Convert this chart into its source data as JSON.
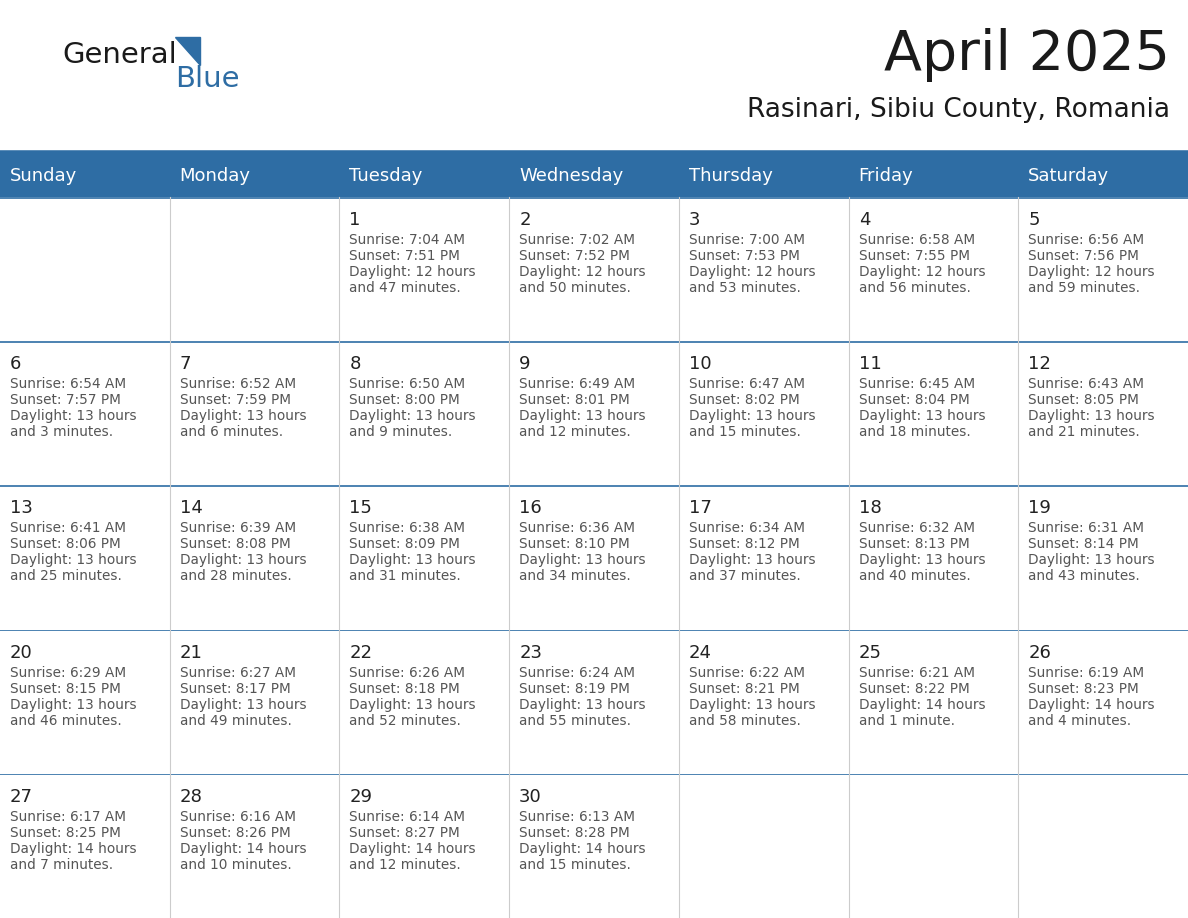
{
  "title": "April 2025",
  "subtitle": "Rasinari, Sibiu County, Romania",
  "header_bg": "#2E6DA4",
  "header_text_color": "#FFFFFF",
  "cell_bg_even": "#EFEFEF",
  "cell_bg_odd": "#FFFFFF",
  "border_color": "#2E6DA4",
  "day_headers": [
    "Sunday",
    "Monday",
    "Tuesday",
    "Wednesday",
    "Thursday",
    "Friday",
    "Saturday"
  ],
  "days_data": [
    {
      "day": 1,
      "col": 2,
      "row": 0,
      "sunrise": "7:04 AM",
      "sunset": "7:51 PM",
      "daylight": "12 hours",
      "daylight2": "and 47 minutes."
    },
    {
      "day": 2,
      "col": 3,
      "row": 0,
      "sunrise": "7:02 AM",
      "sunset": "7:52 PM",
      "daylight": "12 hours",
      "daylight2": "and 50 minutes."
    },
    {
      "day": 3,
      "col": 4,
      "row": 0,
      "sunrise": "7:00 AM",
      "sunset": "7:53 PM",
      "daylight": "12 hours",
      "daylight2": "and 53 minutes."
    },
    {
      "day": 4,
      "col": 5,
      "row": 0,
      "sunrise": "6:58 AM",
      "sunset": "7:55 PM",
      "daylight": "12 hours",
      "daylight2": "and 56 minutes."
    },
    {
      "day": 5,
      "col": 6,
      "row": 0,
      "sunrise": "6:56 AM",
      "sunset": "7:56 PM",
      "daylight": "12 hours",
      "daylight2": "and 59 minutes."
    },
    {
      "day": 6,
      "col": 0,
      "row": 1,
      "sunrise": "6:54 AM",
      "sunset": "7:57 PM",
      "daylight": "13 hours",
      "daylight2": "and 3 minutes."
    },
    {
      "day": 7,
      "col": 1,
      "row": 1,
      "sunrise": "6:52 AM",
      "sunset": "7:59 PM",
      "daylight": "13 hours",
      "daylight2": "and 6 minutes."
    },
    {
      "day": 8,
      "col": 2,
      "row": 1,
      "sunrise": "6:50 AM",
      "sunset": "8:00 PM",
      "daylight": "13 hours",
      "daylight2": "and 9 minutes."
    },
    {
      "day": 9,
      "col": 3,
      "row": 1,
      "sunrise": "6:49 AM",
      "sunset": "8:01 PM",
      "daylight": "13 hours",
      "daylight2": "and 12 minutes."
    },
    {
      "day": 10,
      "col": 4,
      "row": 1,
      "sunrise": "6:47 AM",
      "sunset": "8:02 PM",
      "daylight": "13 hours",
      "daylight2": "and 15 minutes."
    },
    {
      "day": 11,
      "col": 5,
      "row": 1,
      "sunrise": "6:45 AM",
      "sunset": "8:04 PM",
      "daylight": "13 hours",
      "daylight2": "and 18 minutes."
    },
    {
      "day": 12,
      "col": 6,
      "row": 1,
      "sunrise": "6:43 AM",
      "sunset": "8:05 PM",
      "daylight": "13 hours",
      "daylight2": "and 21 minutes."
    },
    {
      "day": 13,
      "col": 0,
      "row": 2,
      "sunrise": "6:41 AM",
      "sunset": "8:06 PM",
      "daylight": "13 hours",
      "daylight2": "and 25 minutes."
    },
    {
      "day": 14,
      "col": 1,
      "row": 2,
      "sunrise": "6:39 AM",
      "sunset": "8:08 PM",
      "daylight": "13 hours",
      "daylight2": "and 28 minutes."
    },
    {
      "day": 15,
      "col": 2,
      "row": 2,
      "sunrise": "6:38 AM",
      "sunset": "8:09 PM",
      "daylight": "13 hours",
      "daylight2": "and 31 minutes."
    },
    {
      "day": 16,
      "col": 3,
      "row": 2,
      "sunrise": "6:36 AM",
      "sunset": "8:10 PM",
      "daylight": "13 hours",
      "daylight2": "and 34 minutes."
    },
    {
      "day": 17,
      "col": 4,
      "row": 2,
      "sunrise": "6:34 AM",
      "sunset": "8:12 PM",
      "daylight": "13 hours",
      "daylight2": "and 37 minutes."
    },
    {
      "day": 18,
      "col": 5,
      "row": 2,
      "sunrise": "6:32 AM",
      "sunset": "8:13 PM",
      "daylight": "13 hours",
      "daylight2": "and 40 minutes."
    },
    {
      "day": 19,
      "col": 6,
      "row": 2,
      "sunrise": "6:31 AM",
      "sunset": "8:14 PM",
      "daylight": "13 hours",
      "daylight2": "and 43 minutes."
    },
    {
      "day": 20,
      "col": 0,
      "row": 3,
      "sunrise": "6:29 AM",
      "sunset": "8:15 PM",
      "daylight": "13 hours",
      "daylight2": "and 46 minutes."
    },
    {
      "day": 21,
      "col": 1,
      "row": 3,
      "sunrise": "6:27 AM",
      "sunset": "8:17 PM",
      "daylight": "13 hours",
      "daylight2": "and 49 minutes."
    },
    {
      "day": 22,
      "col": 2,
      "row": 3,
      "sunrise": "6:26 AM",
      "sunset": "8:18 PM",
      "daylight": "13 hours",
      "daylight2": "and 52 minutes."
    },
    {
      "day": 23,
      "col": 3,
      "row": 3,
      "sunrise": "6:24 AM",
      "sunset": "8:19 PM",
      "daylight": "13 hours",
      "daylight2": "and 55 minutes."
    },
    {
      "day": 24,
      "col": 4,
      "row": 3,
      "sunrise": "6:22 AM",
      "sunset": "8:21 PM",
      "daylight": "13 hours",
      "daylight2": "and 58 minutes."
    },
    {
      "day": 25,
      "col": 5,
      "row": 3,
      "sunrise": "6:21 AM",
      "sunset": "8:22 PM",
      "daylight": "14 hours",
      "daylight2": "and 1 minute."
    },
    {
      "day": 26,
      "col": 6,
      "row": 3,
      "sunrise": "6:19 AM",
      "sunset": "8:23 PM",
      "daylight": "14 hours",
      "daylight2": "and 4 minutes."
    },
    {
      "day": 27,
      "col": 0,
      "row": 4,
      "sunrise": "6:17 AM",
      "sunset": "8:25 PM",
      "daylight": "14 hours",
      "daylight2": "and 7 minutes."
    },
    {
      "day": 28,
      "col": 1,
      "row": 4,
      "sunrise": "6:16 AM",
      "sunset": "8:26 PM",
      "daylight": "14 hours",
      "daylight2": "and 10 minutes."
    },
    {
      "day": 29,
      "col": 2,
      "row": 4,
      "sunrise": "6:14 AM",
      "sunset": "8:27 PM",
      "daylight": "14 hours",
      "daylight2": "and 12 minutes."
    },
    {
      "day": 30,
      "col": 3,
      "row": 4,
      "sunrise": "6:13 AM",
      "sunset": "8:28 PM",
      "daylight": "14 hours",
      "daylight2": "and 15 minutes."
    }
  ],
  "logo_text1": "General",
  "logo_text2": "Blue",
  "logo_text1_color": "#1a1a1a",
  "logo_text2_color": "#2E6DA4",
  "logo_triangle_color": "#2E6DA4",
  "figsize": [
    11.88,
    9.18
  ],
  "dpi": 100
}
